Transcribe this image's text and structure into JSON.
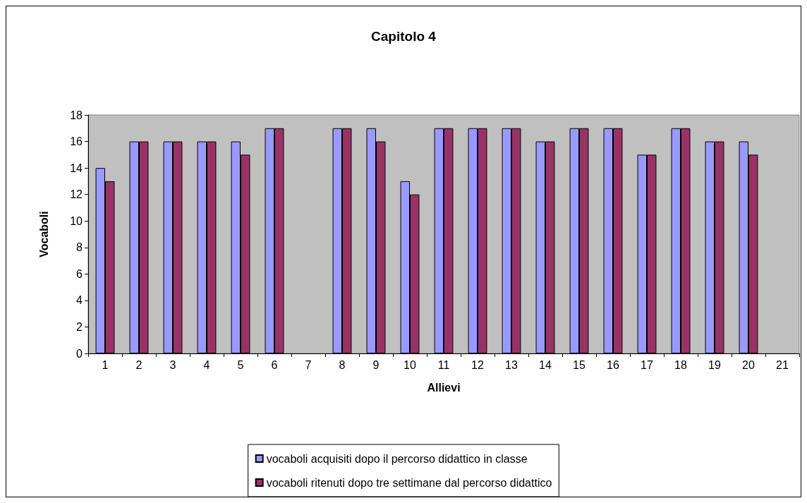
{
  "chart_data": {
    "type": "bar",
    "title": "Capitolo 4",
    "xlabel": "Allievi",
    "ylabel": "Vocaboli",
    "categories": [
      "1",
      "2",
      "3",
      "4",
      "5",
      "6",
      "7",
      "8",
      "9",
      "10",
      "11",
      "12",
      "13",
      "14",
      "15",
      "16",
      "17",
      "18",
      "19",
      "20",
      "21"
    ],
    "series": [
      {
        "name": "vocaboli acquisiti dopo il percorso didattico in classe",
        "color": "#9999ff",
        "values": [
          14,
          16,
          16,
          16,
          16,
          17,
          null,
          17,
          17,
          13,
          17,
          17,
          17,
          16,
          17,
          17,
          15,
          17,
          16,
          16,
          null
        ]
      },
      {
        "name": "vocaboli ritenuti dopo tre settimane dal percorso didattico",
        "color": "#993366",
        "values": [
          13,
          16,
          16,
          16,
          15,
          17,
          null,
          17,
          16,
          12,
          17,
          17,
          17,
          16,
          17,
          17,
          15,
          17,
          16,
          15,
          null
        ]
      }
    ],
    "ylim": [
      0,
      18
    ],
    "yticks": [
      0,
      2,
      4,
      6,
      8,
      10,
      12,
      14,
      16,
      18
    ],
    "grid": false,
    "legend": "bottom"
  }
}
